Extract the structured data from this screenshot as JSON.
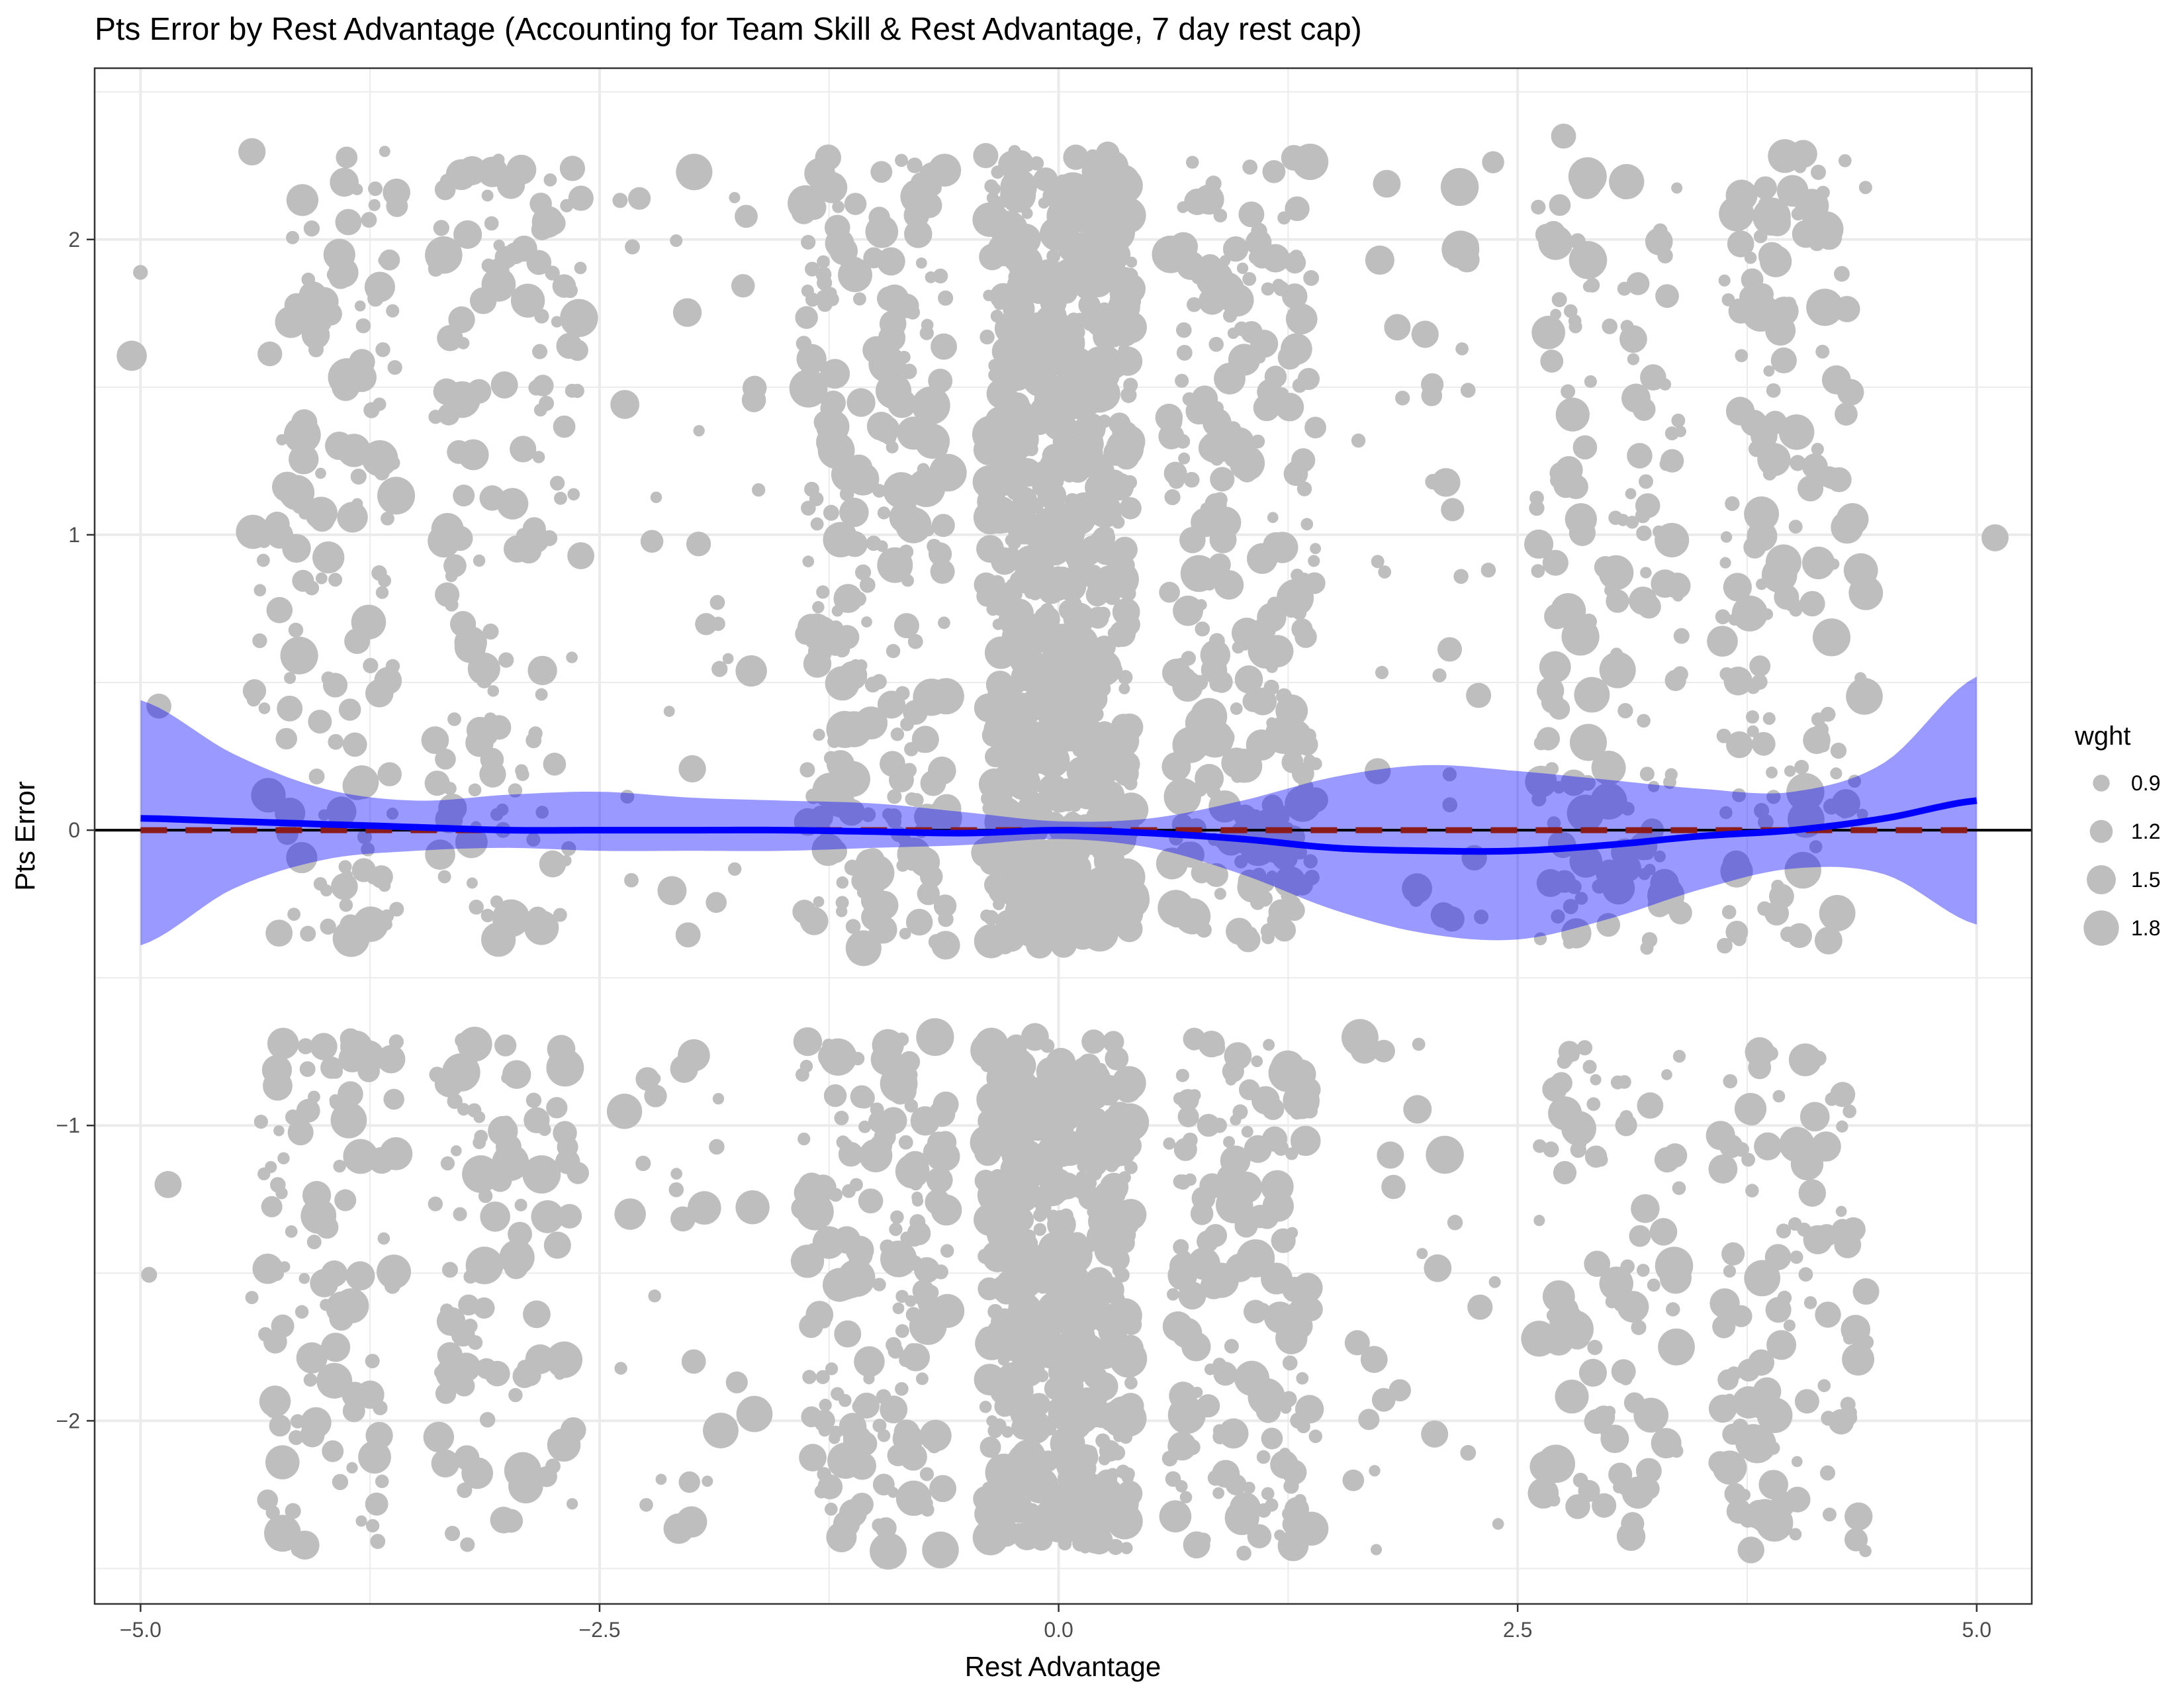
{
  "chart_data": {
    "type": "scatter",
    "title": "Pts Error by Rest Advantage (Accounting for Team Skill & Rest Advantage, 7 day rest cap)",
    "xlabel": "Rest Advantage",
    "ylabel": "Pts Error",
    "xlim": [
      -5.25,
      5.3
    ],
    "ylim": [
      -2.62,
      2.58
    ],
    "x_ticks": [
      -5.0,
      -2.5,
      0.0,
      2.5,
      5.0
    ],
    "x_tick_labels": [
      "−5.0",
      "−2.5",
      "0.0",
      "2.5",
      "5.0"
    ],
    "y_ticks": [
      -2,
      -1,
      0,
      1,
      2
    ],
    "y_tick_labels": [
      "−2",
      "−1",
      "0",
      "1",
      "2"
    ],
    "grid": true,
    "legend": {
      "title": "wght",
      "placement": "right",
      "entries": [
        {
          "label": "0.9",
          "value": 0.9
        },
        {
          "label": "1.2",
          "value": 1.2
        },
        {
          "label": "1.5",
          "value": 1.5
        },
        {
          "label": "1.8",
          "value": 1.8
        }
      ]
    },
    "point_color": "#bebebe",
    "weight_range": [
      0.6,
      1.95
    ],
    "clusters": [
      {
        "x": -5.0,
        "n": 3,
        "spread": 0.05
      },
      {
        "x": -4.0,
        "n": 260,
        "spread": 0.4
      },
      {
        "x": -3.0,
        "n": 240,
        "spread": 0.4
      },
      {
        "x": -2.0,
        "n": 60,
        "spread": 0.4
      },
      {
        "x": -1.0,
        "n": 420,
        "spread": 0.4
      },
      {
        "x": 0.0,
        "n": 1300,
        "spread": 0.4
      },
      {
        "x": 1.0,
        "n": 420,
        "spread": 0.4
      },
      {
        "x": 2.0,
        "n": 60,
        "spread": 0.4
      },
      {
        "x": 3.0,
        "n": 240,
        "spread": 0.4
      },
      {
        "x": 4.0,
        "n": 260,
        "spread": 0.4
      }
    ],
    "extra_points": [
      {
        "x": 5.1,
        "y": 0.99,
        "w": 1.4
      },
      {
        "x": -4.85,
        "y": -1.2,
        "w": 1.4
      },
      {
        "x": -4.9,
        "y": 0.42,
        "w": 1.3
      },
      {
        "x": 2.75,
        "y": 2.35,
        "w": 1.3
      }
    ],
    "smooth": {
      "color": "#0000ff",
      "ribbon_color": "#0000ff",
      "ribbon_opacity": 0.4,
      "x": [
        -5.0,
        -4.5,
        -4.0,
        -3.5,
        -3.0,
        -2.5,
        -2.0,
        -1.5,
        -1.0,
        -0.5,
        0.0,
        0.5,
        1.0,
        1.5,
        2.0,
        2.5,
        3.0,
        3.5,
        4.0,
        4.5,
        5.0
      ],
      "y": [
        0.04,
        0.03,
        0.02,
        0.01,
        0.0,
        0.0,
        0.0,
        0.0,
        -0.005,
        -0.01,
        0.0,
        -0.01,
        -0.03,
        -0.06,
        -0.07,
        -0.07,
        -0.05,
        -0.02,
        0.0,
        0.04,
        0.1
      ],
      "lower": [
        -0.39,
        -0.2,
        -0.1,
        -0.07,
        -0.06,
        -0.07,
        -0.07,
        -0.07,
        -0.06,
        -0.05,
        -0.03,
        -0.06,
        -0.15,
        -0.27,
        -0.35,
        -0.37,
        -0.3,
        -0.2,
        -0.13,
        -0.15,
        -0.32
      ],
      "upper": [
        0.44,
        0.26,
        0.14,
        0.1,
        0.12,
        0.13,
        0.11,
        0.1,
        0.09,
        0.06,
        0.03,
        0.04,
        0.1,
        0.18,
        0.22,
        0.2,
        0.17,
        0.14,
        0.13,
        0.23,
        0.52
      ]
    },
    "reference_lines": [
      {
        "y": 0,
        "color": "#000000",
        "style": "solid"
      },
      {
        "y": 0,
        "color": "#8b1a1a",
        "style": "dashed"
      }
    ]
  }
}
